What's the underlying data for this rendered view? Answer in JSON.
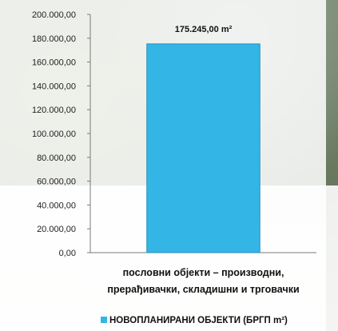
{
  "chart_data": {
    "type": "bar",
    "categories": [
      "пословни објекти – производни, прерађивачки, складишни и трговачки"
    ],
    "category_lines": [
      "пословни објекти – производни,",
      "прерађивачки, складишни и трговачки"
    ],
    "series": [
      {
        "name": "НОВОПЛАНИРАНИ ОБЈЕКТИ (БРГП m²)",
        "values": [
          175245.0
        ],
        "color": "#33b5e5"
      }
    ],
    "data_labels": [
      "175.245,00 m²"
    ],
    "yticks": [
      0,
      20000,
      40000,
      60000,
      80000,
      100000,
      120000,
      140000,
      160000,
      180000,
      200000
    ],
    "ytick_labels": [
      "0,00",
      "20.000,00",
      "40.000,00",
      "60.000,00",
      "80.000,00",
      "100.000,00",
      "120.000,00",
      "140.000,00",
      "160.000,00",
      "180.000,00",
      "200.000,00"
    ],
    "ylim": [
      0,
      200000
    ],
    "grid": false,
    "legend_position": "bottom"
  }
}
